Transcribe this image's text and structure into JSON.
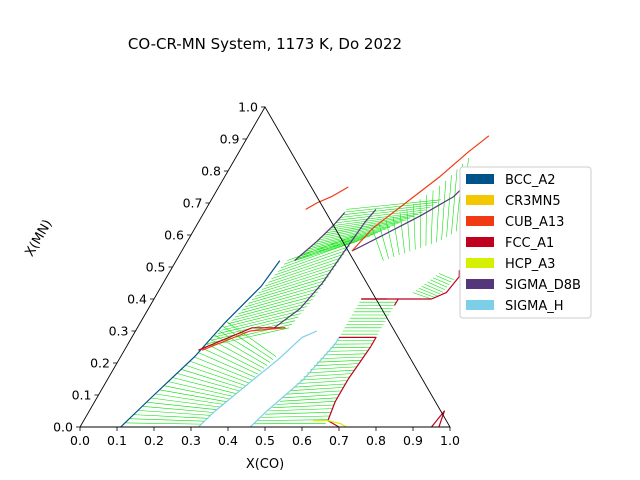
{
  "chart_data": {
    "type": "ternary-phase-diagram",
    "title": "CO-CR-MN System, 1173 K, Do 2022",
    "xlabel": "X(CO)",
    "ylabel": "X(MN)",
    "xlim": [
      0.0,
      1.0
    ],
    "ylim": [
      0.0,
      1.0
    ],
    "x_ticks": [
      "0.0",
      "0.1",
      "0.2",
      "0.3",
      "0.4",
      "0.5",
      "0.6",
      "0.7",
      "0.8",
      "0.9",
      "1.0"
    ],
    "y_ticks": [
      "0.0",
      "0.1",
      "0.2",
      "0.3",
      "0.4",
      "0.5",
      "0.6",
      "0.7",
      "0.8",
      "0.9",
      "1.0"
    ],
    "grid": false,
    "legend_position": "right",
    "legend": [
      {
        "name": "BCC_A2",
        "color": "#00538a"
      },
      {
        "name": "CR3MN5",
        "color": "#f4c800"
      },
      {
        "name": "CUB_A13",
        "color": "#f13a13"
      },
      {
        "name": "FCC_A1",
        "color": "#c10020"
      },
      {
        "name": "HCP_A3",
        "color": "#d5f000"
      },
      {
        "name": "SIGMA_D8B",
        "color": "#53377a"
      },
      {
        "name": "SIGMA_H",
        "color": "#7bcfe8"
      }
    ],
    "tieline_color": "#00e000",
    "boundaries": [
      {
        "phase": "BCC_A2",
        "color": "#00538a",
        "points": [
          [
            0.11,
            0.0
          ],
          [
            0.15,
            0.1
          ],
          [
            0.2,
            0.22
          ],
          [
            0.23,
            0.33
          ],
          [
            0.27,
            0.44
          ],
          [
            0.28,
            0.52
          ]
        ]
      },
      {
        "phase": "SIGMA_D8B",
        "color": "#53377a",
        "points": [
          [
            0.37,
            0.31
          ],
          [
            0.41,
            0.37
          ],
          [
            0.43,
            0.45
          ],
          [
            0.44,
            0.55
          ],
          [
            0.45,
            0.64
          ],
          [
            0.46,
            0.68
          ]
        ]
      },
      {
        "phase": "SIGMA_D8B",
        "color": "#53377a",
        "points": [
          [
            0.32,
            0.52
          ],
          [
            0.35,
            0.58
          ],
          [
            0.37,
            0.63
          ],
          [
            0.38,
            0.67
          ]
        ]
      },
      {
        "phase": "SIGMA_D8B",
        "color": "#53377a",
        "points": [
          [
            0.46,
            0.55
          ],
          [
            0.52,
            0.6
          ],
          [
            0.59,
            0.66
          ],
          [
            0.65,
            0.72
          ],
          [
            0.68,
            0.8
          ]
        ]
      },
      {
        "phase": "SIGMA_D8B",
        "color": "#53377a",
        "points": [
          [
            0.56,
            0.4
          ],
          [
            0.59,
            0.4
          ],
          [
            0.62,
            0.4
          ],
          [
            0.63,
            0.4
          ]
        ]
      },
      {
        "phase": "SIGMA_H",
        "color": "#7bcfe8",
        "points": [
          [
            0.32,
            0.0
          ],
          [
            0.34,
            0.05
          ],
          [
            0.39,
            0.14
          ],
          [
            0.43,
            0.21
          ],
          [
            0.46,
            0.28
          ],
          [
            0.49,
            0.3
          ]
        ]
      },
      {
        "phase": "SIGMA_H",
        "color": "#7bcfe8",
        "points": [
          [
            0.46,
            0.0
          ],
          [
            0.48,
            0.05
          ],
          [
            0.53,
            0.15
          ],
          [
            0.56,
            0.26
          ],
          [
            0.56,
            0.28
          ]
        ]
      },
      {
        "phase": "FCC_A1",
        "color": "#c10020",
        "points": [
          [
            0.56,
            0.28
          ],
          [
            0.66,
            0.28
          ],
          [
            0.66,
            0.25
          ],
          [
            0.65,
            0.15
          ],
          [
            0.65,
            0.08
          ],
          [
            0.66,
            0.02
          ],
          [
            0.7,
            0.0
          ]
        ]
      },
      {
        "phase": "FCC_A1",
        "color": "#c10020",
        "points": [
          [
            0.56,
            0.4
          ],
          [
            0.66,
            0.4
          ],
          [
            0.66,
            0.38
          ]
        ]
      },
      {
        "phase": "FCC_A1",
        "color": "#c10020",
        "points": [
          [
            0.66,
            0.4
          ],
          [
            0.75,
            0.4
          ],
          [
            0.78,
            0.42
          ],
          [
            0.79,
            0.47
          ],
          [
            0.78,
            0.49
          ]
        ]
      },
      {
        "phase": "FCC_A1",
        "color": "#c10020",
        "points": [
          [
            0.95,
            0.0
          ],
          [
            0.96,
            0.05
          ],
          [
            0.97,
            0.0
          ]
        ]
      },
      {
        "phase": "FCC_A1",
        "color": "#c10020",
        "points": [
          [
            0.2,
            0.24
          ],
          [
            0.31,
            0.31
          ],
          [
            0.4,
            0.31
          ]
        ]
      },
      {
        "phase": "CUB_A13",
        "color": "#f13a13",
        "points": [
          [
            0.27,
            0.68
          ],
          [
            0.29,
            0.7
          ],
          [
            0.32,
            0.72
          ],
          [
            0.35,
            0.75
          ]
        ]
      },
      {
        "phase": "CUB_A13",
        "color": "#f13a13",
        "points": [
          [
            0.46,
            0.55
          ],
          [
            0.48,
            0.62
          ],
          [
            0.53,
            0.7
          ],
          [
            0.58,
            0.78
          ],
          [
            0.62,
            0.86
          ],
          [
            0.65,
            0.91
          ]
        ]
      },
      {
        "phase": "CUB_A13",
        "color": "#f13a13",
        "points": [
          [
            0.21,
            0.24
          ],
          [
            0.31,
            0.3
          ],
          [
            0.4,
            0.31
          ]
        ]
      },
      {
        "phase": "HCP_A3",
        "color": "#d5f000",
        "points": [
          [
            0.62,
            0.02
          ],
          [
            0.66,
            0.02
          ],
          [
            0.7,
            0.01
          ],
          [
            0.72,
            0.0
          ]
        ]
      }
    ],
    "tieline_regions": [
      {
        "a": [
          [
            0.11,
            0.0
          ],
          [
            0.15,
            0.1
          ],
          [
            0.2,
            0.22
          ],
          [
            0.23,
            0.33
          ]
        ],
        "b": [
          [
            0.32,
            0.0
          ],
          [
            0.34,
            0.05
          ],
          [
            0.39,
            0.14
          ],
          [
            0.42,
            0.22
          ]
        ],
        "count": 26
      },
      {
        "a": [
          [
            0.21,
            0.25
          ],
          [
            0.25,
            0.35
          ],
          [
            0.28,
            0.44
          ],
          [
            0.3,
            0.52
          ]
        ],
        "b": [
          [
            0.41,
            0.31
          ],
          [
            0.43,
            0.4
          ],
          [
            0.44,
            0.5
          ],
          [
            0.45,
            0.6
          ]
        ],
        "count": 26
      },
      {
        "a": [
          [
            0.32,
            0.52
          ],
          [
            0.35,
            0.58
          ],
          [
            0.37,
            0.63
          ],
          [
            0.38,
            0.68
          ]
        ],
        "b": [
          [
            0.46,
            0.58
          ],
          [
            0.52,
            0.62
          ],
          [
            0.59,
            0.67
          ],
          [
            0.62,
            0.71
          ]
        ],
        "count": 22
      },
      {
        "a": [
          [
            0.48,
            0.62
          ],
          [
            0.54,
            0.68
          ],
          [
            0.6,
            0.76
          ],
          [
            0.63,
            0.84
          ]
        ],
        "b": [
          [
            0.56,
            0.52
          ],
          [
            0.62,
            0.55
          ],
          [
            0.68,
            0.58
          ],
          [
            0.72,
            0.62
          ]
        ],
        "count": 16
      },
      {
        "a": [
          [
            0.46,
            0.0
          ],
          [
            0.5,
            0.08
          ],
          [
            0.53,
            0.17
          ],
          [
            0.56,
            0.27
          ]
        ],
        "b": [
          [
            0.66,
            0.0
          ],
          [
            0.65,
            0.08
          ],
          [
            0.65,
            0.17
          ],
          [
            0.66,
            0.27
          ]
        ],
        "count": 26
      },
      {
        "a": [
          [
            0.56,
            0.28
          ],
          [
            0.56,
            0.33
          ],
          [
            0.56,
            0.39
          ]
        ],
        "b": [
          [
            0.66,
            0.28
          ],
          [
            0.66,
            0.33
          ],
          [
            0.66,
            0.39
          ]
        ],
        "count": 12
      },
      {
        "a": [
          [
            0.75,
            0.4
          ],
          [
            0.77,
            0.42
          ],
          [
            0.78,
            0.46
          ]
        ],
        "b": [
          [
            0.69,
            0.42
          ],
          [
            0.71,
            0.45
          ],
          [
            0.73,
            0.48
          ]
        ],
        "count": 10
      }
    ]
  }
}
